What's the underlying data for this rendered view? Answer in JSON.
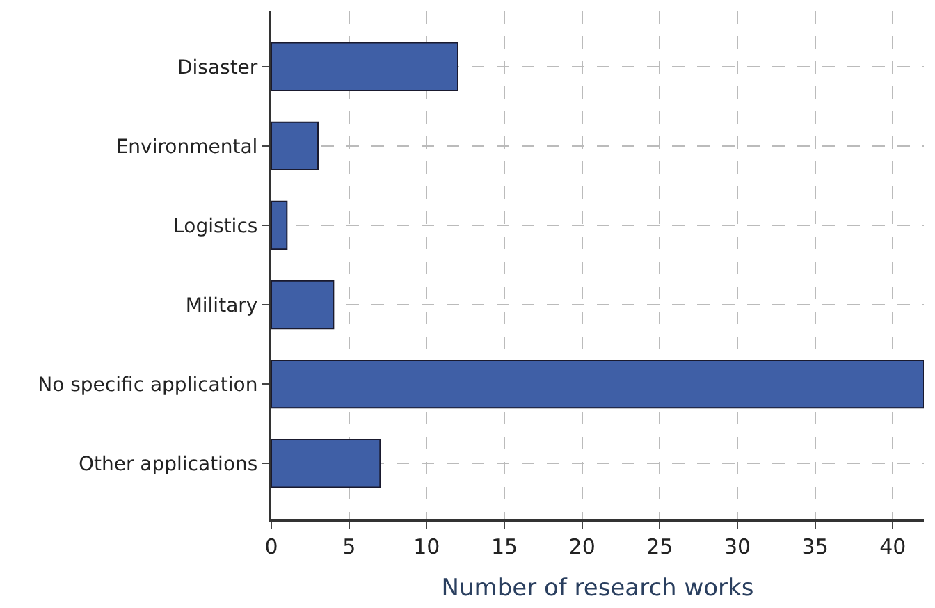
{
  "chart_data": {
    "type": "bar",
    "orientation": "horizontal",
    "xlabel": "Number of research works",
    "categories": [
      "Disaster",
      "Environmental",
      "Logistics",
      "Military",
      "No specific application",
      "Other applications"
    ],
    "values": [
      12,
      3,
      1,
      4,
      42,
      7
    ],
    "color": "#3f5fa6",
    "xlim": [
      0,
      42
    ],
    "xticks": [
      0,
      5,
      10,
      15,
      20,
      25,
      30,
      35,
      40
    ],
    "grid": true
  }
}
